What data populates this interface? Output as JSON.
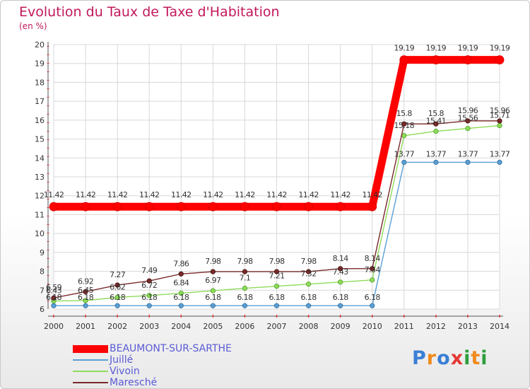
{
  "title": "Evolution du Taux de Taxe d'Habitation",
  "unit_label": "(en %)",
  "logo": {
    "letters": [
      "P",
      "r",
      "o",
      "x",
      "i",
      "t",
      "i"
    ],
    "colors": [
      "#3a7fd6",
      "#f08a1c",
      "#3a7fd6",
      "#e53935",
      "#2e9e3e",
      "#f08a1c",
      "#2e9e3e"
    ]
  },
  "chart_data": {
    "type": "line",
    "title": "Evolution du Taux de Taxe d'Habitation",
    "ylabel": "(en %)",
    "x": [
      "2000",
      "2001",
      "2002",
      "2003",
      "2004",
      "2005",
      "2006",
      "2007",
      "2008",
      "2009",
      "2010",
      "2011",
      "2012",
      "2013",
      "2014"
    ],
    "ylim": [
      6,
      20
    ],
    "yticks": [
      6,
      7,
      8,
      9,
      10,
      11,
      12,
      13,
      14,
      15,
      16,
      17,
      18,
      19,
      20
    ],
    "grid": true,
    "legend_position": "bottom-left",
    "series": [
      {
        "name": "BEAUMONT-SUR-SARTHE",
        "color": "#ff0000",
        "values": [
          11.42,
          11.42,
          11.42,
          11.42,
          11.42,
          11.42,
          11.42,
          11.42,
          11.42,
          11.42,
          11.42,
          19.19,
          19.19,
          19.19,
          19.19
        ],
        "labels": [
          "11.42",
          "11.42",
          "11.42",
          "11.42",
          "11.42",
          "11.42",
          "11.42",
          "11.42",
          "11.42",
          "11.42",
          "11.42",
          "19.19",
          "19.19",
          "19.19",
          "19.19"
        ]
      },
      {
        "name": "Juillé",
        "color": "#5a9fd4",
        "values": [
          6.18,
          6.18,
          6.18,
          6.18,
          6.18,
          6.18,
          6.18,
          6.18,
          6.18,
          6.18,
          6.18,
          13.77,
          13.77,
          13.77,
          13.77
        ],
        "labels": [
          "6.18",
          "6.18",
          "6.18",
          "6.18",
          "6.18",
          "6.18",
          "6.18",
          "6.18",
          "6.18",
          "6.18",
          "6.18",
          "13.77",
          "13.77",
          "13.77",
          "13.77"
        ]
      },
      {
        "name": "Vivoin",
        "color": "#8fdc5a",
        "values": [
          6.43,
          6.45,
          6.62,
          6.72,
          6.84,
          6.97,
          7.1,
          7.21,
          7.32,
          7.43,
          7.54,
          15.18,
          15.41,
          15.56,
          15.71
        ],
        "labels": [
          "6.43",
          "6.45",
          "6.62",
          "6.72",
          "6.84",
          "6.97",
          "7.1",
          "7.21",
          "7.32",
          "7.43",
          "7.54",
          "15.18",
          "15.41",
          "15.56",
          "15.71"
        ]
      },
      {
        "name": "Maresché",
        "color": "#7a2a2a",
        "values": [
          6.59,
          6.92,
          7.27,
          7.49,
          7.86,
          7.98,
          7.98,
          7.98,
          7.98,
          8.14,
          8.14,
          15.8,
          15.8,
          15.96,
          15.96
        ],
        "labels": [
          "6.59",
          "6.92",
          "7.27",
          "7.49",
          "7.86",
          "7.98",
          "7.98",
          "7.98",
          "7.98",
          "8.14",
          "8.14",
          "15.8",
          "15.8",
          "15.96",
          "15.96"
        ]
      }
    ]
  }
}
